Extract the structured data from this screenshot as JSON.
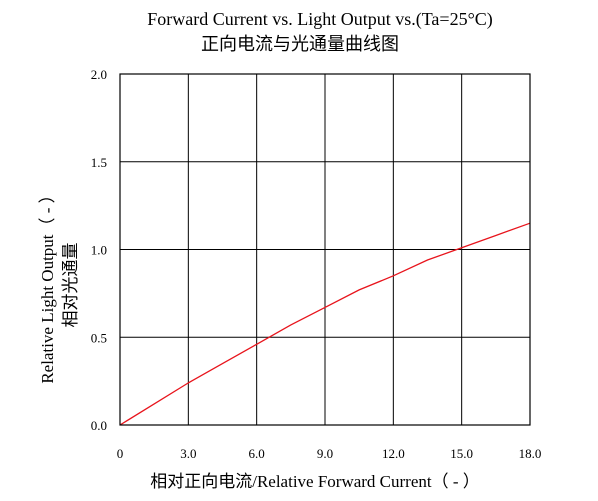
{
  "chart_data": {
    "type": "line",
    "title": "Forward Current vs. Light Output vs.(Ta=25°C)",
    "subtitle": "正向电流与光通量曲线图",
    "xlabel": "相对正向电流/Relative Forward Current（ - ）",
    "ylabel": "Relative Light Output（ - ）",
    "ylabel_cn": "相对光通量",
    "xlim": [
      0,
      18
    ],
    "ylim": [
      0,
      2
    ],
    "x_ticks": [
      "0",
      "3.0",
      "6.0",
      "9.0",
      "12.0",
      "15.0",
      "18.0"
    ],
    "x_tick_values": [
      0,
      3,
      6,
      9,
      12,
      15,
      18
    ],
    "y_ticks": [
      "0.0",
      "0.5",
      "1.0",
      "1.5",
      "2.0"
    ],
    "y_tick_values": [
      0,
      0.5,
      1.0,
      1.5,
      2.0
    ],
    "grid": true,
    "series": [
      {
        "color": "#e8141c",
        "x": [
          0,
          1.5,
          3,
          4.5,
          6,
          7.5,
          9,
          10.5,
          12,
          13.5,
          15,
          16.5,
          18
        ],
        "y": [
          0,
          0.12,
          0.24,
          0.35,
          0.46,
          0.57,
          0.67,
          0.77,
          0.85,
          0.94,
          1.01,
          1.08,
          1.15
        ]
      }
    ]
  }
}
